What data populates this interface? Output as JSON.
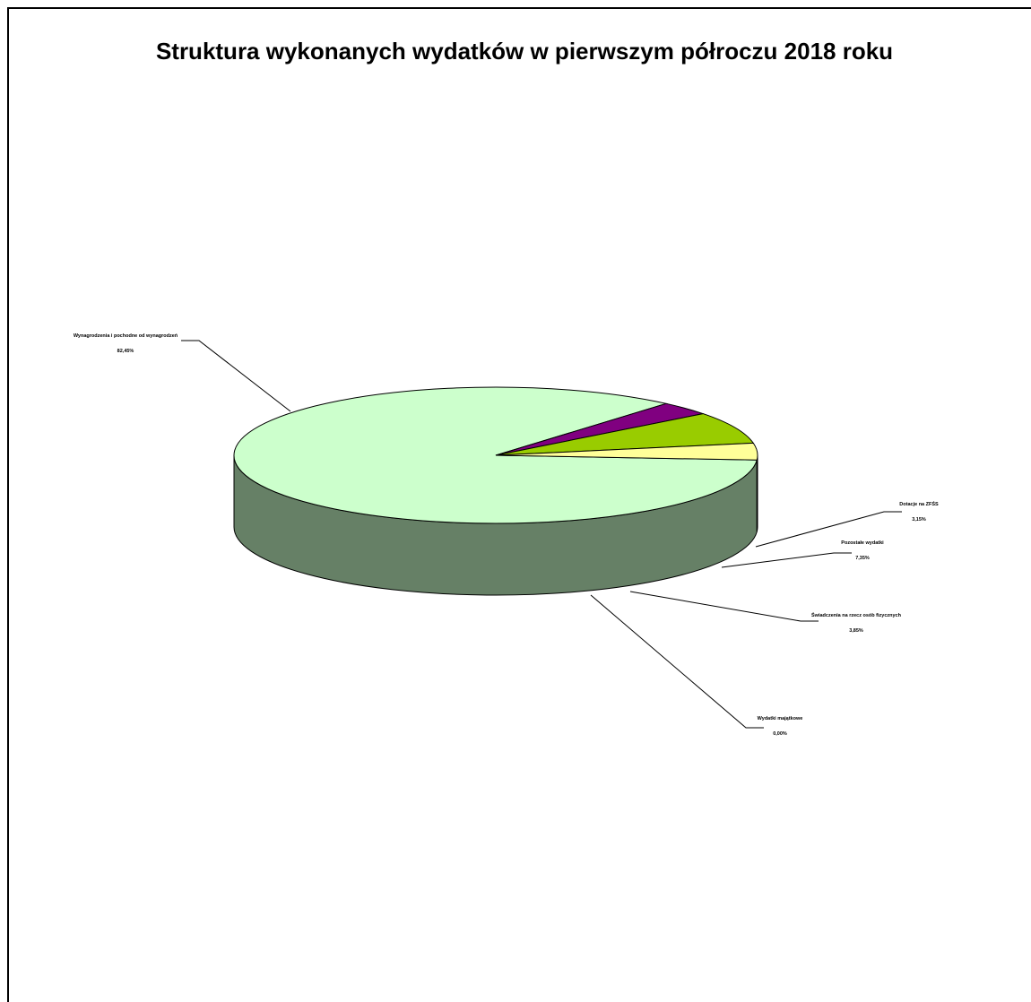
{
  "chart_data": {
    "type": "pie",
    "style": "3d",
    "title": "Struktura wykonanych wydatków w pierwszym półroczu 2018 roku",
    "legend": "none",
    "slices": [
      {
        "name": "Wynagrodzenia i pochodne od wynagrodzeń",
        "value": 82.45,
        "value_label": "82,45%",
        "top_color": "#ccffcc",
        "side_color": "#668066"
      },
      {
        "name": "Dotacje na ZFŚS",
        "value": 3.15,
        "value_label": "3,15%",
        "top_color": "#800080",
        "side_color": "#400040"
      },
      {
        "name": "Pozostałe wydatki",
        "value": 7.35,
        "value_label": "7,35%",
        "top_color": "#99cc00",
        "side_color": "#4c6600"
      },
      {
        "name": "Świadczenia na rzecz osób fizycznych",
        "value": 3.85,
        "value_label": "3,85%",
        "top_color": "#ffff99",
        "side_color": "#80804c"
      },
      {
        "name": "Wydatki majątkowe",
        "value": 0.0,
        "value_label": "0,00%",
        "top_color": "#ccffcc",
        "side_color": "#668066"
      }
    ]
  }
}
